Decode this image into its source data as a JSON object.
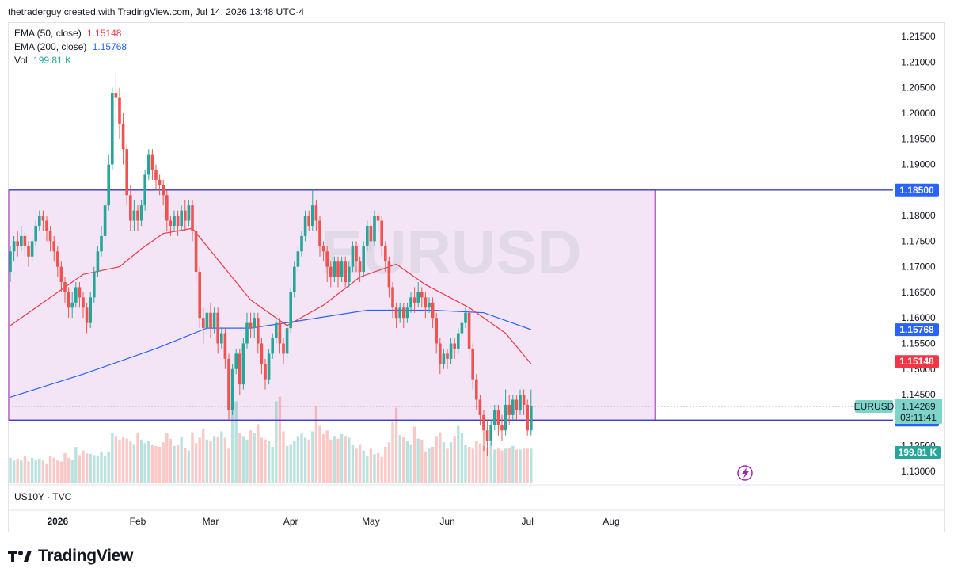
{
  "header": {
    "author_line": "thetraderguy created with TradingView.com, Jul 14, 2026 13:48 UTC-4"
  },
  "legend": {
    "ema50_label": "EMA (50, close)",
    "ema50_value": "1.15148",
    "ema200_label": "EMA (200, close)",
    "ema200_value": "1.15768",
    "vol_label": "Vol",
    "vol_value": "199.81 K"
  },
  "watermark": "EURUSD",
  "sub_pane": {
    "label": "US10Y · TVC"
  },
  "brand": {
    "name": "TradingView"
  },
  "colors": {
    "up": "#26a69a",
    "down": "#ef5350",
    "ema50": "#f23645",
    "ema200": "#2962ff",
    "zone_fill": "#f3e5f5",
    "zone_border": "#9c27b0",
    "level_line": "#3f3fbf"
  },
  "chart_data": {
    "type": "candlestick",
    "symbol": "EURUSD",
    "y_axis": {
      "range": [
        1.1275,
        1.2175
      ],
      "ticks": [
        "1.21500",
        "1.21000",
        "1.20500",
        "1.20000",
        "1.19500",
        "1.19000",
        "1.18000",
        "1.17500",
        "1.17000",
        "1.16500",
        "1.16000",
        "1.15500",
        "1.15000",
        "1.14500",
        "1.13500",
        "1.13000"
      ]
    },
    "x_axis": {
      "labels": [
        {
          "label": "2026",
          "bar": 13
        },
        {
          "label": "Feb",
          "bar": 35
        },
        {
          "label": "Mar",
          "bar": 55
        },
        {
          "label": "Apr",
          "bar": 77
        },
        {
          "label": "May",
          "bar": 99
        },
        {
          "label": "Jun",
          "bar": 120
        },
        {
          "label": "Jul",
          "bar": 142
        },
        {
          "label": "Aug",
          "bar": 165
        }
      ],
      "total_bars": 190
    },
    "zone": {
      "top": 1.185,
      "bottom": 1.14,
      "last_bar": 177
    },
    "levels": [
      {
        "label": "1.18500",
        "value": 1.185,
        "color": "#2962ff"
      },
      {
        "label": "1.14000",
        "value": 1.14,
        "color": "#2962ff"
      }
    ],
    "price_badges": [
      {
        "label": "1.15768",
        "value": 1.15768,
        "color": "#2962ff"
      },
      {
        "label": "1.15148",
        "value": 1.15148,
        "color": "#f23645"
      }
    ],
    "last_price": {
      "symbol": "EURUSD",
      "label": "1.14269",
      "value": 1.14269,
      "countdown": "03:11:41"
    },
    "volume_badge": "199.81 K",
    "candles": [
      [
        1.169,
        1.173,
        1.167,
        1.174
      ],
      [
        1.173,
        1.175,
        1.171,
        1.176
      ],
      [
        1.175,
        1.174,
        1.172,
        1.177
      ],
      [
        1.174,
        1.176,
        1.173,
        1.178
      ],
      [
        1.176,
        1.174,
        1.172,
        1.177
      ],
      [
        1.174,
        1.172,
        1.17,
        1.175
      ],
      [
        1.172,
        1.175,
        1.171,
        1.176
      ],
      [
        1.175,
        1.178,
        1.174,
        1.179
      ],
      [
        1.178,
        1.18,
        1.177,
        1.181
      ],
      [
        1.18,
        1.179,
        1.177,
        1.181
      ],
      [
        1.179,
        1.177,
        1.175,
        1.18
      ],
      [
        1.177,
        1.175,
        1.173,
        1.178
      ],
      [
        1.175,
        1.173,
        1.171,
        1.176
      ],
      [
        1.173,
        1.17,
        1.168,
        1.174
      ],
      [
        1.17,
        1.167,
        1.165,
        1.171
      ],
      [
        1.167,
        1.165,
        1.163,
        1.168
      ],
      [
        1.165,
        1.162,
        1.16,
        1.166
      ],
      [
        1.162,
        1.163,
        1.16,
        1.165
      ],
      [
        1.163,
        1.166,
        1.162,
        1.167
      ],
      [
        1.166,
        1.164,
        1.162,
        1.167
      ],
      [
        1.164,
        1.162,
        1.16,
        1.165
      ],
      [
        1.162,
        1.159,
        1.157,
        1.163
      ],
      [
        1.159,
        1.164,
        1.158,
        1.165
      ],
      [
        1.164,
        1.169,
        1.163,
        1.17
      ],
      [
        1.169,
        1.173,
        1.168,
        1.174
      ],
      [
        1.173,
        1.176,
        1.172,
        1.178
      ],
      [
        1.176,
        1.182,
        1.175,
        1.183
      ],
      [
        1.182,
        1.19,
        1.181,
        1.192
      ],
      [
        1.19,
        1.204,
        1.189,
        1.205
      ],
      [
        1.204,
        1.203,
        1.196,
        1.208
      ],
      [
        1.203,
        1.198,
        1.195,
        1.205
      ],
      [
        1.198,
        1.193,
        1.19,
        1.2
      ],
      [
        1.193,
        1.184,
        1.182,
        1.194
      ],
      [
        1.184,
        1.179,
        1.177,
        1.186
      ],
      [
        1.179,
        1.181,
        1.177,
        1.183
      ],
      [
        1.181,
        1.179,
        1.177,
        1.182
      ],
      [
        1.179,
        1.182,
        1.178,
        1.183
      ],
      [
        1.182,
        1.188,
        1.181,
        1.189
      ],
      [
        1.188,
        1.192,
        1.187,
        1.193
      ],
      [
        1.192,
        1.189,
        1.187,
        1.193
      ],
      [
        1.189,
        1.187,
        1.185,
        1.19
      ],
      [
        1.187,
        1.186,
        1.184,
        1.188
      ],
      [
        1.186,
        1.184,
        1.182,
        1.187
      ],
      [
        1.184,
        1.179,
        1.177,
        1.185
      ],
      [
        1.179,
        1.178,
        1.176,
        1.18
      ],
      [
        1.178,
        1.18,
        1.177,
        1.181
      ],
      [
        1.18,
        1.178,
        1.176,
        1.181
      ],
      [
        1.178,
        1.181,
        1.177,
        1.182
      ],
      [
        1.181,
        1.179,
        1.177,
        1.183
      ],
      [
        1.179,
        1.182,
        1.178,
        1.183
      ],
      [
        1.182,
        1.177,
        1.175,
        1.183
      ],
      [
        1.177,
        1.169,
        1.167,
        1.178
      ],
      [
        1.169,
        1.16,
        1.158,
        1.17
      ],
      [
        1.16,
        1.158,
        1.155,
        1.162
      ],
      [
        1.158,
        1.161,
        1.157,
        1.162
      ],
      [
        1.161,
        1.158,
        1.156,
        1.163
      ],
      [
        1.158,
        1.161,
        1.157,
        1.162
      ],
      [
        1.161,
        1.155,
        1.153,
        1.162
      ],
      [
        1.155,
        1.157,
        1.154,
        1.158
      ],
      [
        1.157,
        1.152,
        1.15,
        1.158
      ],
      [
        1.152,
        1.142,
        1.14,
        1.153
      ],
      [
        1.142,
        1.15,
        1.141,
        1.151
      ],
      [
        1.15,
        1.153,
        1.149,
        1.154
      ],
      [
        1.153,
        1.147,
        1.145,
        1.154
      ],
      [
        1.147,
        1.155,
        1.146,
        1.156
      ],
      [
        1.155,
        1.159,
        1.154,
        1.161
      ],
      [
        1.159,
        1.158,
        1.156,
        1.161
      ],
      [
        1.158,
        1.16,
        1.156,
        1.161
      ],
      [
        1.16,
        1.155,
        1.153,
        1.161
      ],
      [
        1.155,
        1.151,
        1.149,
        1.156
      ],
      [
        1.151,
        1.148,
        1.146,
        1.152
      ],
      [
        1.148,
        1.153,
        1.147,
        1.154
      ],
      [
        1.153,
        1.156,
        1.152,
        1.157
      ],
      [
        1.156,
        1.159,
        1.155,
        1.16
      ],
      [
        1.159,
        1.155,
        1.153,
        1.16
      ],
      [
        1.155,
        1.153,
        1.151,
        1.156
      ],
      [
        1.153,
        1.158,
        1.152,
        1.159
      ],
      [
        1.158,
        1.165,
        1.157,
        1.166
      ],
      [
        1.165,
        1.17,
        1.164,
        1.171
      ],
      [
        1.17,
        1.173,
        1.169,
        1.174
      ],
      [
        1.173,
        1.176,
        1.172,
        1.177
      ],
      [
        1.176,
        1.18,
        1.175,
        1.181
      ],
      [
        1.18,
        1.178,
        1.177,
        1.181
      ],
      [
        1.178,
        1.182,
        1.177,
        1.185
      ],
      [
        1.182,
        1.179,
        1.177,
        1.183
      ],
      [
        1.179,
        1.174,
        1.172,
        1.18
      ],
      [
        1.174,
        1.173,
        1.171,
        1.175
      ],
      [
        1.173,
        1.17,
        1.167,
        1.174
      ],
      [
        1.17,
        1.168,
        1.166,
        1.171
      ],
      [
        1.168,
        1.171,
        1.167,
        1.172
      ],
      [
        1.171,
        1.168,
        1.166,
        1.172
      ],
      [
        1.168,
        1.171,
        1.167,
        1.172
      ],
      [
        1.171,
        1.167,
        1.166,
        1.172
      ],
      [
        1.167,
        1.17,
        1.166,
        1.171
      ],
      [
        1.17,
        1.174,
        1.169,
        1.175
      ],
      [
        1.174,
        1.171,
        1.169,
        1.175
      ],
      [
        1.171,
        1.169,
        1.167,
        1.172
      ],
      [
        1.169,
        1.174,
        1.168,
        1.175
      ],
      [
        1.174,
        1.178,
        1.173,
        1.179
      ],
      [
        1.178,
        1.175,
        1.173,
        1.18
      ],
      [
        1.175,
        1.18,
        1.174,
        1.181
      ],
      [
        1.18,
        1.179,
        1.177,
        1.181
      ],
      [
        1.179,
        1.174,
        1.172,
        1.18
      ],
      [
        1.174,
        1.171,
        1.169,
        1.175
      ],
      [
        1.171,
        1.166,
        1.164,
        1.172
      ],
      [
        1.166,
        1.162,
        1.16,
        1.167
      ],
      [
        1.162,
        1.16,
        1.158,
        1.163
      ],
      [
        1.16,
        1.162,
        1.159,
        1.163
      ],
      [
        1.162,
        1.16,
        1.158,
        1.163
      ],
      [
        1.16,
        1.162,
        1.159,
        1.163
      ],
      [
        1.162,
        1.164,
        1.161,
        1.165
      ],
      [
        1.164,
        1.163,
        1.161,
        1.166
      ],
      [
        1.163,
        1.165,
        1.162,
        1.167
      ],
      [
        1.165,
        1.164,
        1.162,
        1.166
      ],
      [
        1.164,
        1.162,
        1.16,
        1.165
      ],
      [
        1.162,
        1.163,
        1.161,
        1.164
      ],
      [
        1.163,
        1.16,
        1.158,
        1.164
      ],
      [
        1.16,
        1.155,
        1.153,
        1.161
      ],
      [
        1.155,
        1.151,
        1.149,
        1.156
      ],
      [
        1.151,
        1.153,
        1.15,
        1.154
      ],
      [
        1.153,
        1.152,
        1.15,
        1.154
      ],
      [
        1.152,
        1.155,
        1.151,
        1.156
      ],
      [
        1.155,
        1.154,
        1.152,
        1.156
      ],
      [
        1.154,
        1.157,
        1.153,
        1.158
      ],
      [
        1.157,
        1.159,
        1.156,
        1.16
      ],
      [
        1.159,
        1.161,
        1.158,
        1.162
      ],
      [
        1.161,
        1.154,
        1.152,
        1.162
      ],
      [
        1.154,
        1.148,
        1.146,
        1.155
      ],
      [
        1.148,
        1.144,
        1.142,
        1.149
      ],
      [
        1.144,
        1.141,
        1.139,
        1.145
      ],
      [
        1.141,
        1.138,
        1.134,
        1.142
      ],
      [
        1.138,
        1.136,
        1.133,
        1.14
      ],
      [
        1.136,
        1.139,
        1.135,
        1.14
      ],
      [
        1.139,
        1.142,
        1.138,
        1.143
      ],
      [
        1.142,
        1.139,
        1.137,
        1.143
      ],
      [
        1.139,
        1.138,
        1.136,
        1.141
      ],
      [
        1.138,
        1.143,
        1.137,
        1.146
      ],
      [
        1.143,
        1.141,
        1.139,
        1.145
      ],
      [
        1.141,
        1.144,
        1.14,
        1.145
      ],
      [
        1.144,
        1.142,
        1.14,
        1.145
      ],
      [
        1.142,
        1.145,
        1.141,
        1.146
      ],
      [
        1.145,
        1.143,
        1.141,
        1.146
      ],
      [
        1.143,
        1.138,
        1.137,
        1.144
      ],
      [
        1.138,
        1.1427,
        1.137,
        1.146
      ]
    ],
    "ema50": [
      [
        0,
        1.1585
      ],
      [
        20,
        1.1685
      ],
      [
        30,
        1.17
      ],
      [
        36,
        1.1735
      ],
      [
        42,
        1.1765
      ],
      [
        50,
        1.1775
      ],
      [
        58,
        1.1705
      ],
      [
        66,
        1.1635
      ],
      [
        76,
        1.1585
      ],
      [
        86,
        1.1625
      ],
      [
        96,
        1.168
      ],
      [
        106,
        1.1705
      ],
      [
        114,
        1.1665
      ],
      [
        126,
        1.162
      ],
      [
        136,
        1.157
      ],
      [
        143,
        1.151
      ]
    ],
    "ema200": [
      [
        0,
        1.1445
      ],
      [
        20,
        1.149
      ],
      [
        40,
        1.154
      ],
      [
        54,
        1.158
      ],
      [
        66,
        1.158
      ],
      [
        80,
        1.1595
      ],
      [
        98,
        1.1615
      ],
      [
        116,
        1.1615
      ],
      [
        130,
        1.161
      ],
      [
        143,
        1.1577
      ]
    ],
    "volume": [
      0.28,
      0.25,
      0.27,
      0.25,
      0.3,
      0.24,
      0.28,
      0.26,
      0.27,
      0.25,
      0.22,
      0.3,
      0.28,
      0.25,
      0.24,
      0.33,
      0.28,
      0.26,
      0.4,
      0.31,
      0.36,
      0.33,
      0.32,
      0.31,
      0.3,
      0.35,
      0.3,
      0.34,
      0.55,
      0.52,
      0.48,
      0.51,
      0.49,
      0.46,
      0.43,
      0.55,
      0.48,
      0.44,
      0.47,
      0.42,
      0.41,
      0.4,
      0.45,
      0.55,
      0.49,
      0.41,
      0.42,
      0.51,
      0.39,
      0.36,
      0.56,
      0.44,
      0.5,
      0.6,
      0.48,
      0.47,
      0.52,
      0.51,
      0.57,
      0.5,
      0.38,
      0.95,
      0.9,
      0.55,
      0.52,
      0.48,
      0.58,
      0.55,
      0.65,
      0.5,
      0.48,
      0.46,
      0.4,
      0.9,
      0.95,
      0.57,
      0.41,
      0.43,
      0.46,
      0.52,
      0.55,
      0.5,
      0.48,
      0.57,
      0.85,
      0.63,
      0.54,
      0.58,
      0.48,
      0.52,
      0.49,
      0.54,
      0.52,
      0.5,
      0.42,
      0.38,
      0.43,
      0.36,
      0.3,
      0.38,
      0.32,
      0.33,
      0.29,
      0.4,
      0.45,
      0.68,
      0.83,
      0.53,
      0.51,
      0.47,
      0.43,
      0.62,
      0.49,
      0.48,
      0.35,
      0.38,
      0.4,
      0.52,
      0.56,
      0.45,
      0.38,
      0.45,
      0.52,
      0.63,
      0.55,
      0.42,
      0.4,
      0.38,
      0.47,
      0.44,
      0.41,
      0.39,
      0.45,
      0.37,
      0.38,
      0.36,
      0.38,
      0.39,
      0.41,
      0.37,
      0.37,
      0.38,
      0.38,
      0.38
    ],
    "volume_colors_from_candles": true
  }
}
